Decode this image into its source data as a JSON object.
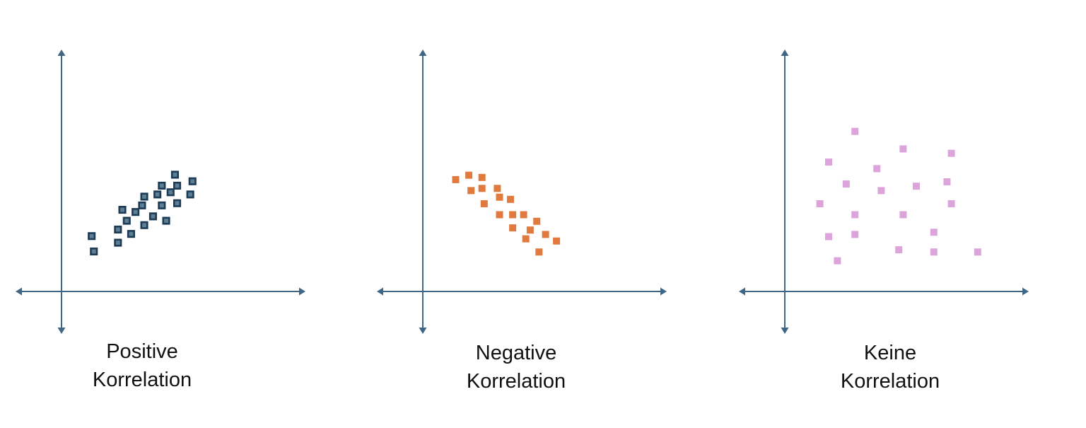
{
  "axis_color": "#3f6684",
  "chart_data": [
    {
      "type": "scatter",
      "title": "",
      "caption": [
        "Positive",
        "Korrelation"
      ],
      "xlabel": "",
      "ylabel": "",
      "grid": false,
      "marker": "square",
      "marker_color": "#1d3b54",
      "marker_style": "outlined",
      "xlim": [
        -1,
        12.5
      ],
      "ylim": [
        -1.3,
        9
      ],
      "points": [
        [
          1.4,
          2.5
        ],
        [
          1.5,
          1.8
        ],
        [
          2.6,
          2.2
        ],
        [
          2.6,
          2.8
        ],
        [
          2.8,
          3.7
        ],
        [
          3.0,
          3.2
        ],
        [
          3.2,
          2.6
        ],
        [
          3.4,
          3.6
        ],
        [
          3.8,
          3.0
        ],
        [
          3.7,
          3.9
        ],
        [
          3.8,
          4.3
        ],
        [
          4.2,
          3.4
        ],
        [
          4.4,
          4.4
        ],
        [
          4.6,
          4.8
        ],
        [
          4.6,
          3.9
        ],
        [
          4.8,
          3.2
        ],
        [
          5.0,
          4.5
        ],
        [
          5.3,
          4.8
        ],
        [
          5.3,
          4.0
        ],
        [
          5.2,
          5.3
        ],
        [
          5.9,
          4.4
        ],
        [
          6.0,
          5.0
        ]
      ]
    },
    {
      "type": "scatter",
      "title": "",
      "caption": [
        "Negative",
        "Korrelation"
      ],
      "xlabel": "",
      "ylabel": "",
      "grid": false,
      "marker": "square",
      "marker_color": "#e07a3e",
      "marker_style": "filled",
      "xlim": [
        -1,
        12.5
      ],
      "ylim": [
        -1.3,
        9
      ],
      "points": [
        [
          1.5,
          5.1
        ],
        [
          2.1,
          5.3
        ],
        [
          2.2,
          4.6
        ],
        [
          2.7,
          5.2
        ],
        [
          2.7,
          4.7
        ],
        [
          2.8,
          4.0
        ],
        [
          3.4,
          4.7
        ],
        [
          3.5,
          4.3
        ],
        [
          3.5,
          3.5
        ],
        [
          4.0,
          4.2
        ],
        [
          4.1,
          3.5
        ],
        [
          4.1,
          2.9
        ],
        [
          4.6,
          3.5
        ],
        [
          4.7,
          2.4
        ],
        [
          4.9,
          2.8
        ],
        [
          5.2,
          3.2
        ],
        [
          5.3,
          1.8
        ],
        [
          5.6,
          2.6
        ],
        [
          6.1,
          2.3
        ]
      ]
    },
    {
      "type": "scatter",
      "title": "",
      "caption": [
        "Keine",
        "Korrelation"
      ],
      "xlabel": "",
      "ylabel": "",
      "grid": false,
      "marker": "square",
      "marker_color": "#dda4dc",
      "marker_style": "filled",
      "xlim": [
        -1,
        12.5
      ],
      "ylim": [
        -1.3,
        9
      ],
      "points": [
        [
          3.2,
          7.3
        ],
        [
          5.4,
          6.5
        ],
        [
          7.6,
          6.3
        ],
        [
          2.0,
          5.9
        ],
        [
          4.2,
          5.6
        ],
        [
          2.8,
          4.9
        ],
        [
          4.4,
          4.6
        ],
        [
          6.0,
          4.8
        ],
        [
          7.4,
          5.0
        ],
        [
          1.6,
          4.0
        ],
        [
          7.6,
          4.0
        ],
        [
          3.2,
          3.5
        ],
        [
          5.4,
          3.5
        ],
        [
          2.0,
          2.5
        ],
        [
          3.2,
          2.6
        ],
        [
          6.8,
          2.7
        ],
        [
          5.2,
          1.9
        ],
        [
          6.8,
          1.8
        ],
        [
          8.8,
          1.8
        ],
        [
          2.4,
          1.4
        ]
      ]
    }
  ]
}
